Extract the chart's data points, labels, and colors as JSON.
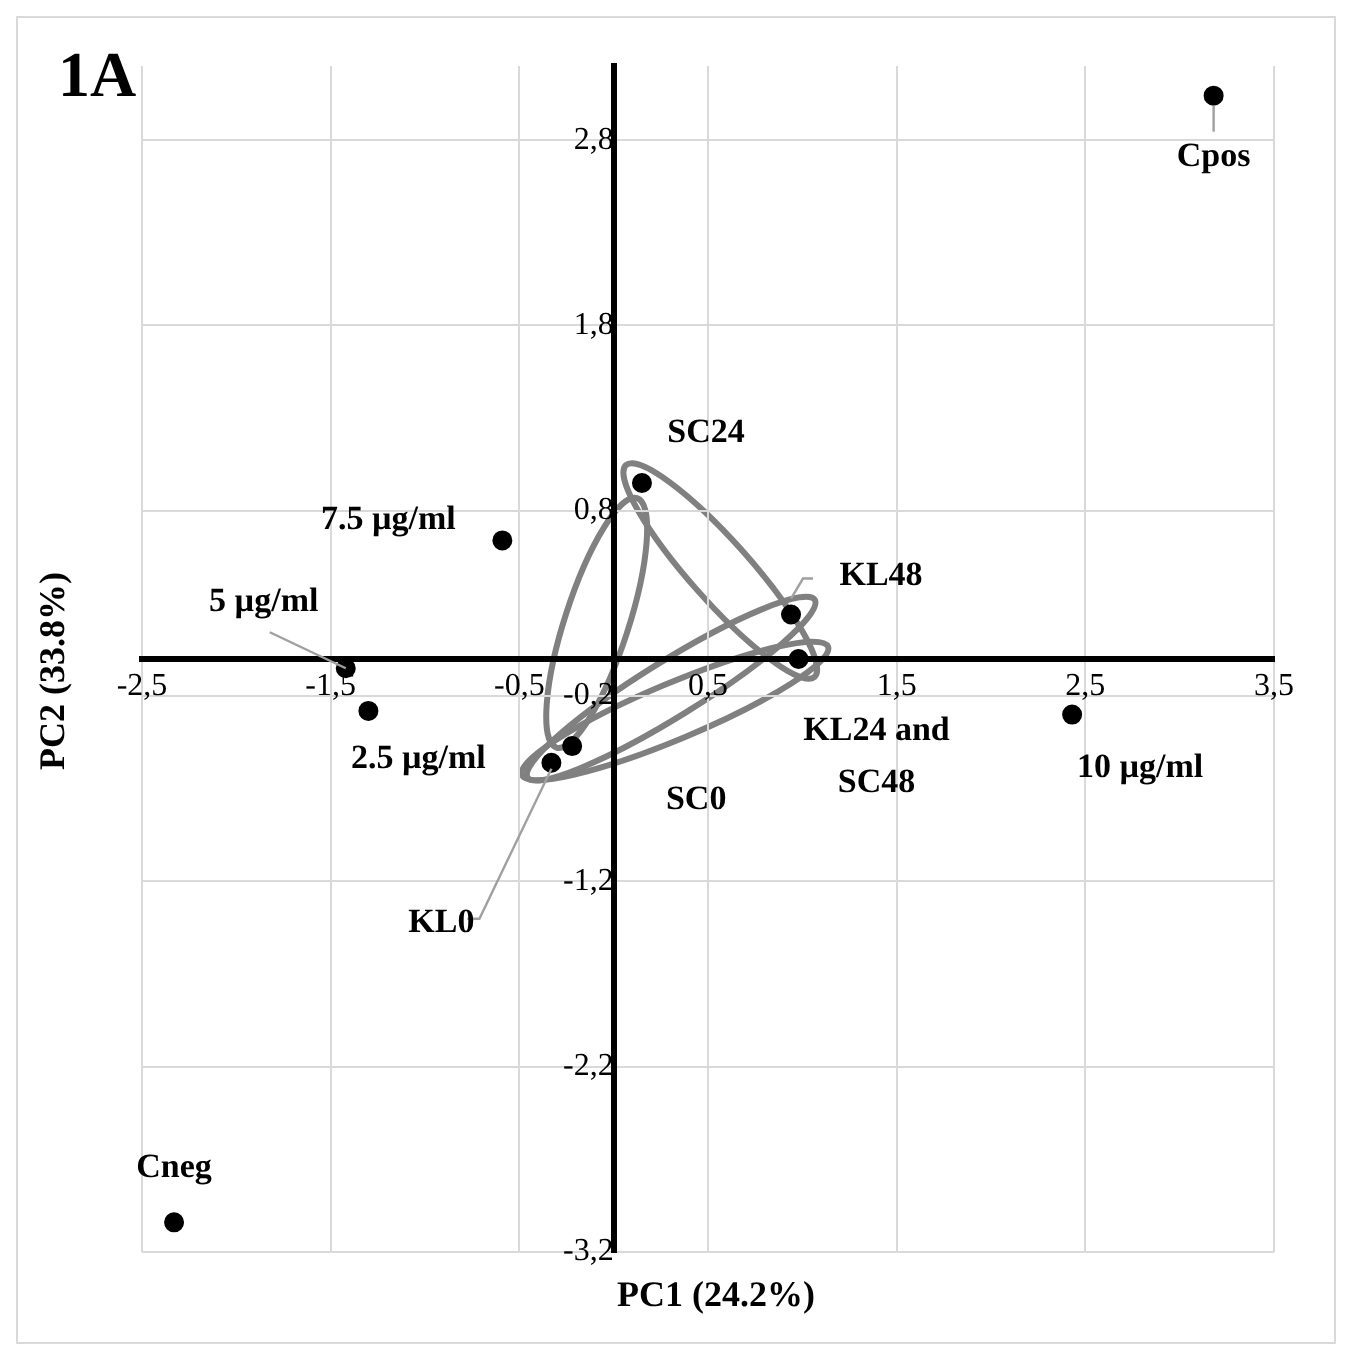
{
  "chart_data": {
    "type": "scatter",
    "title": "1A",
    "xlabel": "PC1 (24.2%)",
    "ylabel": "PC2 (33.8%)",
    "x": [
      3.18,
      -0.59,
      -1.42,
      -1.3,
      0.15,
      0.94,
      0.98,
      2.43,
      -0.22,
      -0.33,
      -2.33
    ],
    "values": [
      3.04,
      0.64,
      -0.05,
      -0.28,
      0.95,
      0.24,
      0.0,
      -0.3,
      -0.47,
      -0.56,
      -3.04
    ],
    "color": "#000000",
    "marker": "circle",
    "grid": true,
    "legend": false,
    "xlim": [
      -2.5,
      3.5
    ],
    "ylim": [
      -3.2,
      3.2
    ],
    "xticks": [
      {
        "value": -2.5,
        "label": "-2,5"
      },
      {
        "value": -1.5,
        "label": "-1,5"
      },
      {
        "value": -0.5,
        "label": "-0,5"
      },
      {
        "value": 0.5,
        "label": "0,5"
      },
      {
        "value": 1.5,
        "label": "1,5"
      },
      {
        "value": 2.5,
        "label": "2,5"
      },
      {
        "value": 3.5,
        "label": "3,5"
      }
    ],
    "yticks": [
      {
        "value": -3.2,
        "label": "-3,2"
      },
      {
        "value": -2.2,
        "label": "-2,2"
      },
      {
        "value": -1.2,
        "label": "-1,2"
      },
      {
        "value": -0.2,
        "label": "-0,2"
      },
      {
        "value": 0.8,
        "label": "0,8"
      },
      {
        "value": 1.8,
        "label": "1,8"
      },
      {
        "value": 2.8,
        "label": "2,8"
      }
    ],
    "annotations": [
      {
        "text": "Cpos",
        "x": 3.18,
        "y": 3.04
      },
      {
        "text": "7.5 µg/ml",
        "x": -0.59,
        "y": 0.64
      },
      {
        "text": "5 µg/ml",
        "x": -1.42,
        "y": -0.05
      },
      {
        "text": "2.5 µg/ml",
        "x": -1.3,
        "y": -0.28
      },
      {
        "text": "SC24",
        "x": 0.15,
        "y": 0.95
      },
      {
        "text": "KL48",
        "x": 0.94,
        "y": 0.24
      },
      {
        "text": "KL24 and SC48",
        "x": 0.98,
        "y": 0.0
      },
      {
        "text": "10 µg/ml",
        "x": 2.43,
        "y": -0.3
      },
      {
        "text": "SC0",
        "x": -0.22,
        "y": -0.47
      },
      {
        "text": "KL0",
        "x": -0.33,
        "y": -0.56
      },
      {
        "text": "Cneg",
        "x": -2.33,
        "y": -3.04
      }
    ]
  }
}
